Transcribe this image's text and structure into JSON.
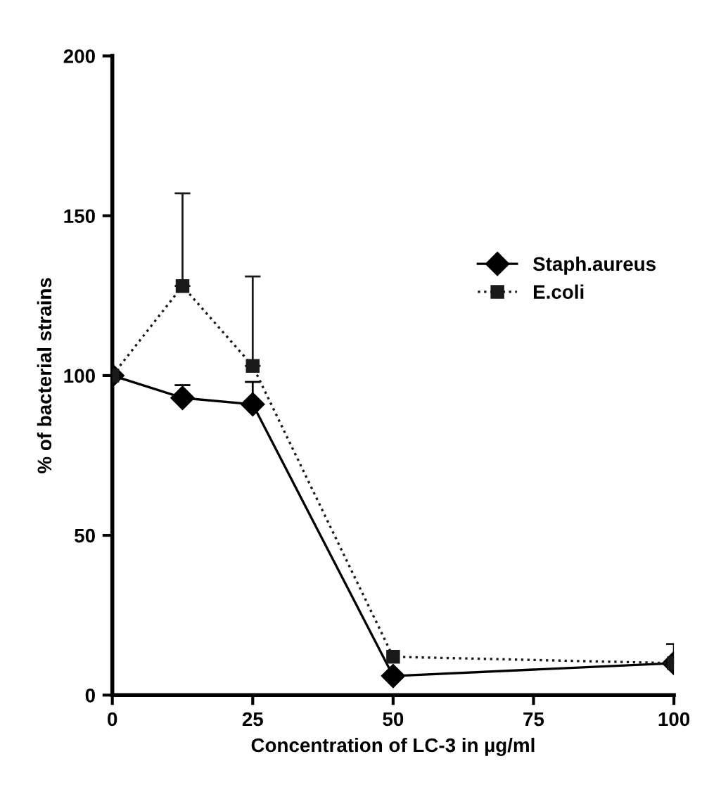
{
  "chart_data": {
    "type": "line",
    "xlabel": "Concentration of LC-3 in µg/ml",
    "ylabel": "% of bacterial strains",
    "x": [
      0,
      12.5,
      25,
      50,
      100
    ],
    "series": [
      {
        "name": "Staph.aureus",
        "color": "#000000",
        "marker": "diamond",
        "line_style": "solid",
        "values": [
          100,
          93,
          91,
          6,
          10
        ],
        "errors": [
          null,
          [
            93,
            97
          ],
          [
            91,
            98
          ],
          null,
          null
        ]
      },
      {
        "name": "E.coli",
        "color": "#1a1a1a",
        "marker": "square",
        "line_style": "dotted",
        "values": [
          100,
          128,
          103,
          12,
          10
        ],
        "errors": [
          null,
          [
            128,
            157
          ],
          [
            103,
            131
          ],
          null,
          [
            10,
            16
          ]
        ]
      }
    ],
    "xlim": [
      0,
      100
    ],
    "ylim": [
      0,
      200
    ],
    "xticks": [
      0,
      25,
      50,
      75,
      100
    ],
    "yticks": [
      0,
      50,
      100,
      150,
      200
    ],
    "grid": false,
    "legend": "right"
  }
}
